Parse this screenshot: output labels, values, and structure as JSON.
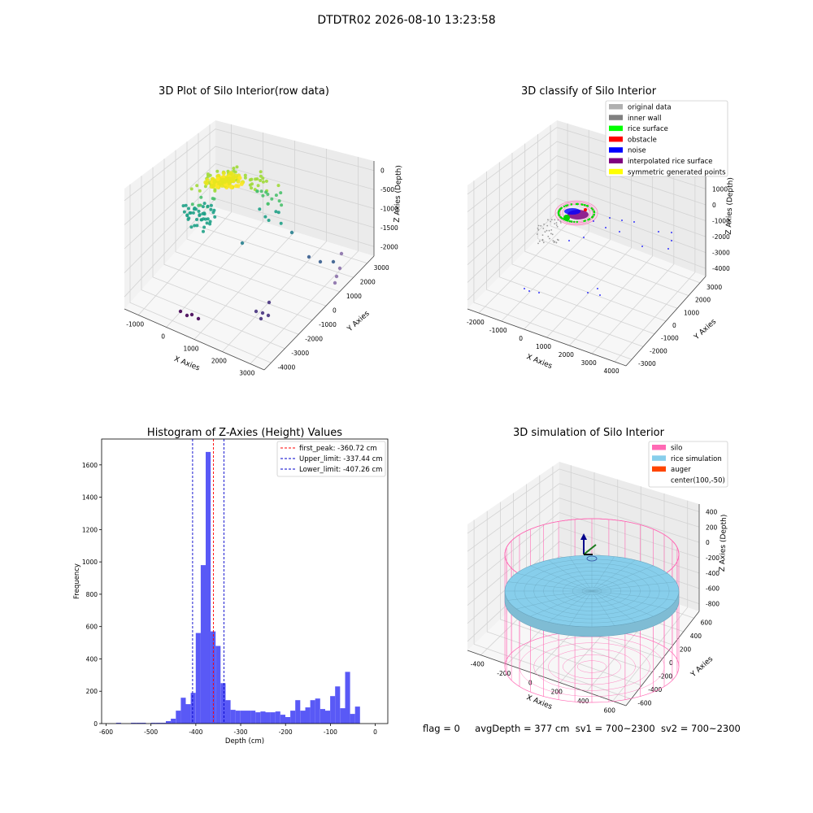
{
  "suptitle": "DTDTR02 2026-08-10 13:23:58",
  "status": {
    "flag": "flag = 0",
    "avg": "avgDepth = 377 cm",
    "sv1": "sv1 = 700~2300",
    "sv2": "sv2 = 700~2300"
  },
  "colors": {
    "hist_bar": "#5050f5",
    "peak_line": "#ff0000",
    "limit_line": "#0000cc",
    "silo": "#ff69b4",
    "rice": "#87ceeb",
    "auger": "#ff4500"
  },
  "chart_data": [
    {
      "type": "scatter",
      "title": "3D Plot of Silo Interior(row data)",
      "xlabel": "X Axies",
      "ylabel": "Y Axies",
      "zlabel": "Z Axies (Depth)",
      "xticks": [
        "-1000",
        "0",
        "1000",
        "2000",
        "3000"
      ],
      "yticks": [
        "3000",
        "2000",
        "1000",
        "0",
        "-1000",
        "-2000",
        "-3000",
        "-4000"
      ],
      "zticks": [
        "0",
        "-500",
        "-1000",
        "-1500",
        "-2000"
      ],
      "colormap": "viridis",
      "grid": true
    },
    {
      "type": "scatter",
      "title": "3D classify of Silo Interior",
      "xlabel": "X Axies",
      "ylabel": "Y Axies",
      "zlabel": "Z Axies (Depth)",
      "xticks": [
        "-2000",
        "-1000",
        "0",
        "1000",
        "2000",
        "3000",
        "4000"
      ],
      "yticks": [
        "3000",
        "2000",
        "1000",
        "0",
        "-1000",
        "-2000",
        "-3000"
      ],
      "zticks": [
        "2000",
        "1000",
        "0",
        "-1000",
        "-2000",
        "-3000",
        "-4000"
      ],
      "legend_position": "top-right",
      "legend": [
        {
          "label": "original data",
          "color": "#b0b0b0"
        },
        {
          "label": "inner wall",
          "color": "#808080"
        },
        {
          "label": "rice surface",
          "color": "#00ff00"
        },
        {
          "label": "obstacle",
          "color": "#ff0000"
        },
        {
          "label": "noise",
          "color": "#0000ff"
        },
        {
          "label": "interpolated rice surface",
          "color": "#800080"
        },
        {
          "label": "symmetric generated points",
          "color": "#ffff00"
        }
      ],
      "grid": true
    },
    {
      "type": "bar",
      "title": "Histogram of Z-Axies (Height) Values",
      "xlabel": "Depth (cm)",
      "ylabel": "Frequency",
      "xlim": [
        -610,
        28
      ],
      "ylim": [
        0,
        1760
      ],
      "xticks": [
        -600,
        -500,
        -400,
        -300,
        -200,
        -100,
        0
      ],
      "yticks": [
        0,
        200,
        400,
        600,
        800,
        1000,
        1200,
        1400,
        1600
      ],
      "bins": {
        "start": -600,
        "width": 11.1,
        "values": [
          0,
          0,
          5,
          0,
          0,
          5,
          5,
          5,
          0,
          5,
          5,
          5,
          15,
          30,
          80,
          160,
          120,
          190,
          560,
          980,
          1680,
          570,
          480,
          250,
          145,
          85,
          80,
          80,
          80,
          80,
          70,
          75,
          70,
          70,
          75,
          55,
          40,
          80,
          145,
          80,
          100,
          145,
          155,
          90,
          80,
          170,
          230,
          95,
          320,
          60,
          105
        ]
      },
      "vlines": [
        {
          "label": "first_peak: -360.72 cm",
          "x": -360.72,
          "color": "#ff0000"
        },
        {
          "label": "Upper_limit: -337.44 cm",
          "x": -337.44,
          "color": "#0000cc"
        },
        {
          "label": "Lower_limit: -407.26 cm",
          "x": -407.26,
          "color": "#0000cc"
        }
      ],
      "legend_position": "top-right",
      "grid": false
    },
    {
      "type": "scatter",
      "title": "3D simulation of Silo Interior",
      "xlabel": "X Axies",
      "ylabel": "Y Axies",
      "zlabel": "Z Axies (Depth)",
      "xticks": [
        "-400",
        "-200",
        "0",
        "200",
        "400",
        "600"
      ],
      "yticks": [
        "600",
        "400",
        "200",
        "0",
        "-200",
        "-400",
        "-600"
      ],
      "zticks": [
        "400",
        "200",
        "0",
        "-200",
        "-400",
        "-600",
        "-800"
      ],
      "legend_position": "top-right",
      "legend": [
        {
          "label": "silo",
          "color": "#ff69b4",
          "swatch": true
        },
        {
          "label": "rice simulation",
          "color": "#87ceeb",
          "swatch": true
        },
        {
          "label": "auger",
          "color": "#ff4500",
          "swatch": true
        },
        {
          "label": "center(100,-50)",
          "color": "",
          "swatch": false
        }
      ],
      "grid": true
    }
  ]
}
